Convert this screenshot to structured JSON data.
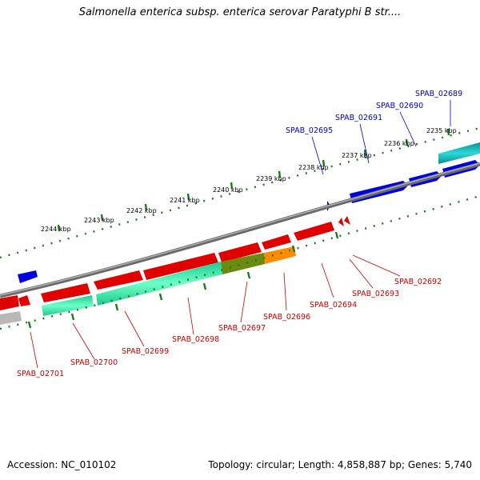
{
  "title": "Salmonella enterica subsp. enterica serovar Paratyphi B str....",
  "footer": {
    "accession": "Accession: NC_010102",
    "stats": "Topology: circular; Length: 4,858,887 bp; Genes: 5,740"
  },
  "colors": {
    "backbone": "#8a8a8a",
    "tick": "#1f7a1f",
    "forward_gene": "#0000e0",
    "reverse_gene": "#e00000",
    "forward_cds": "#00b4b4",
    "reverse_cds": "#2ee8a8",
    "overlap_cds": "#6b8a10",
    "orange_cds": "#ff8c00",
    "grey_cds": "#b8b8b8",
    "forward_label": "#0000cc",
    "reverse_label": "#cc0000"
  },
  "scale_labels": [
    "2235 kbp",
    "2236 kbp",
    "2237 kbp",
    "2238 kbp",
    "2239 kbp",
    "2240 kbp",
    "2241 kbp",
    "2242 kbp",
    "2243 kbp",
    "2244 kbp"
  ],
  "forward_genes": [
    "SPAB_02689",
    "SPAB_02690",
    "SPAB_02691",
    "SPAB_02695"
  ],
  "reverse_genes": [
    "SPAB_02692",
    "SPAB_02693",
    "SPAB_02694",
    "SPAB_02696",
    "SPAB_02697",
    "SPAB_02698",
    "SPAB_02699",
    "SPAB_02700",
    "SPAB_02701"
  ]
}
